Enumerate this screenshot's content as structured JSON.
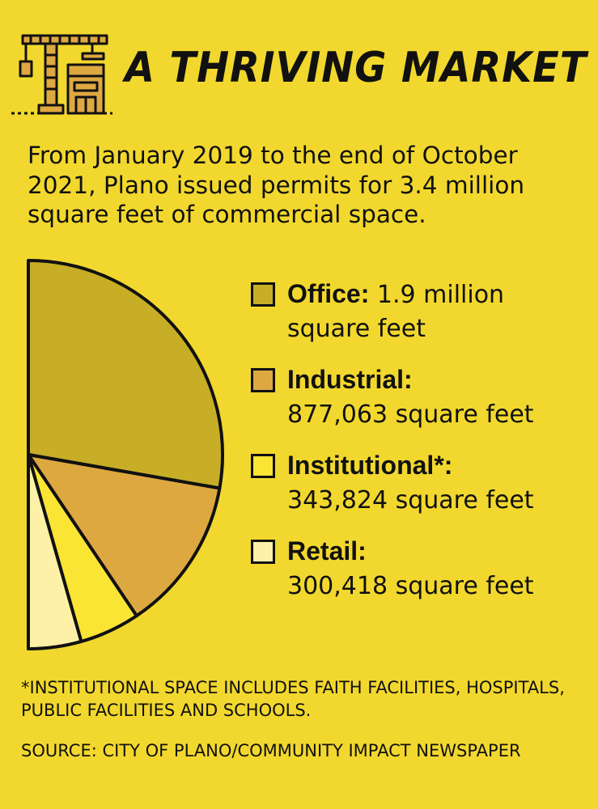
{
  "header": {
    "title": "A THRIVING MARKET",
    "icon": "construction-crane-building-icon"
  },
  "intro": "From January 2019 to the end of October 2021, Plano issued permits for 3.4 million square feet of commercial space.",
  "chart_data": {
    "type": "pie",
    "title": "",
    "subtitle": "",
    "layout": "half-pie, flat edge on left, legend at right",
    "unit": "square feet",
    "slices": [
      {
        "name": "Office",
        "label": "Office:",
        "value": 1900000,
        "value_label": "1.9 million square feet",
        "color": "#C8AE26"
      },
      {
        "name": "Industrial",
        "label": "Industrial:",
        "value": 877063,
        "value_label": "877,063 square feet",
        "color": "#DEA841"
      },
      {
        "name": "Institutional",
        "label": "Institutional*:",
        "value": 343824,
        "value_label": "343,824 square feet",
        "color": "#FAE434"
      },
      {
        "name": "Retail",
        "label": "Retail:",
        "value": 300418,
        "value_label": "300,418 square feet",
        "color": "#FCF1A6"
      }
    ]
  },
  "footnote": "*INSTITUTIONAL SPACE INCLUDES FAITH FACILITIES, HOSPITALS, PUBLIC FACILITIES AND SCHOOLS.",
  "source": "SOURCE: CITY OF PLANO/COMMUNITY IMPACT NEWSPAPER",
  "colors": {
    "background": "#F2D82E",
    "ink": "#111111"
  }
}
